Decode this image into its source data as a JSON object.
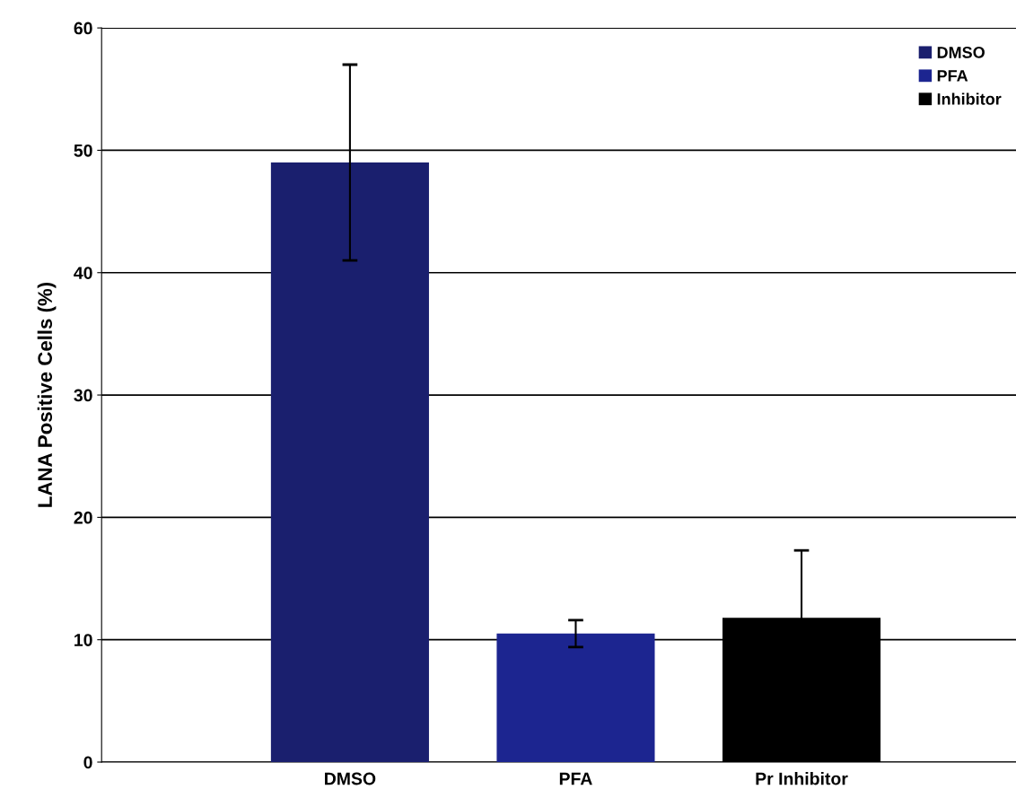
{
  "chart_data": {
    "type": "bar",
    "ylabel": "LANA Positive Cells (%)",
    "categories": [
      "DMSO",
      "PFA",
      "Pr Inhibitor"
    ],
    "series": [
      {
        "name": "DMSO",
        "color": "#1a1f6e",
        "values": [
          49,
          null,
          null
        ],
        "errors": [
          8,
          null,
          null
        ]
      },
      {
        "name": "PFA",
        "color": "#1c2590",
        "values": [
          null,
          10.5,
          null
        ],
        "errors": [
          null,
          1.1,
          null
        ]
      },
      {
        "name": "Inhibitor",
        "color": "#000000",
        "values": [
          null,
          null,
          11.8
        ],
        "errors": [
          null,
          null,
          5.5
        ]
      }
    ],
    "ylim": [
      0,
      60
    ],
    "yticks": [
      0,
      10,
      20,
      30,
      40,
      50,
      60
    ],
    "grid": "y",
    "legend": "top right"
  }
}
